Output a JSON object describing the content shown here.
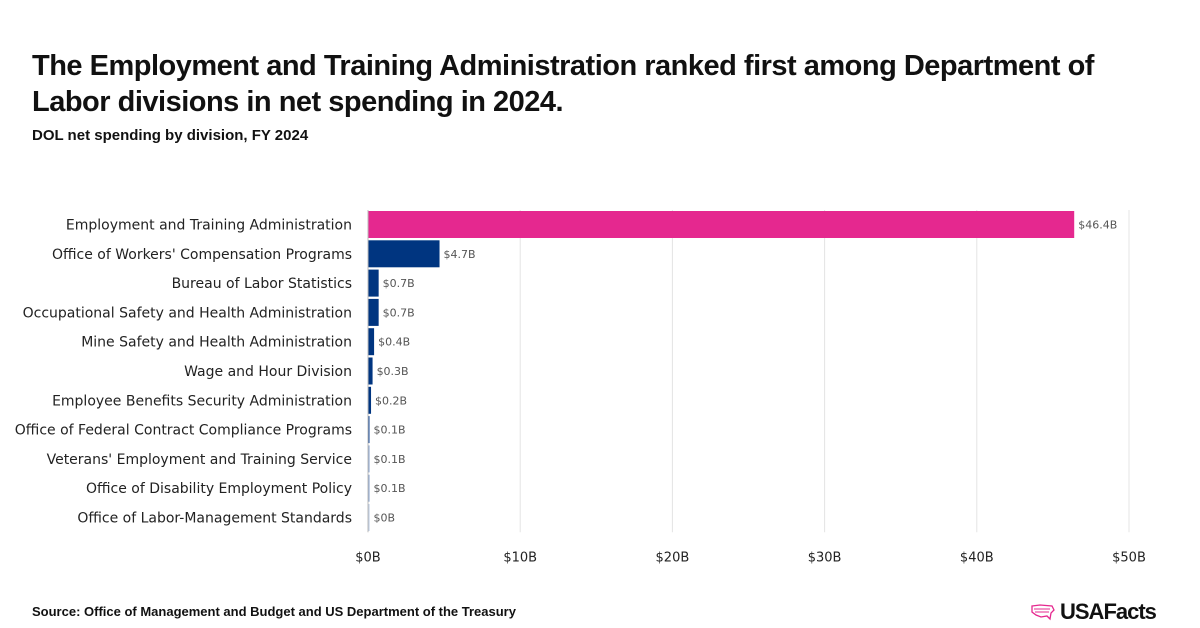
{
  "title": "The Employment and Training Administration ranked first among Department of Labor divisions in net spending in 2024.",
  "subtitle": "DOL net spending by division, FY 2024",
  "source": "Source: Office of Management and Budget and US Department of the Treasury",
  "logo": "USAFacts",
  "chart_data": {
    "type": "bar",
    "orientation": "horizontal",
    "title": "DOL net spending by division, FY 2024",
    "xlabel": "",
    "ylabel": "",
    "xlim": [
      0,
      50
    ],
    "x_ticks": [
      0,
      10,
      20,
      30,
      40,
      50
    ],
    "x_tick_labels": [
      "$0B",
      "$10B",
      "$20B",
      "$30B",
      "$40B",
      "$50B"
    ],
    "grid": true,
    "categories": [
      "Employment and Training Administration",
      "Office of Workers' Compensation Programs",
      "Bureau of Labor Statistics",
      "Occupational Safety and Health Administration",
      "Mine Safety and Health Administration",
      "Wage and Hour Division",
      "Employee Benefits Security Administration",
      "Office of Federal Contract Compliance Programs",
      "Veterans' Employment and Training Service",
      "Office of Disability Employment Policy",
      "Office of Labor-Management Standards"
    ],
    "values": [
      46.4,
      4.7,
      0.7,
      0.7,
      0.4,
      0.3,
      0.2,
      0.1,
      0.1,
      0.1,
      0.04
    ],
    "data_labels": [
      "$46.4B",
      "$4.7B",
      "$0.7B",
      "$0.7B",
      "$0.4B",
      "$0.3B",
      "$0.2B",
      "$0.1B",
      "$0.1B",
      "$0.1B",
      "$0B"
    ],
    "colors": [
      "#e5288f",
      "#003580",
      "#003580",
      "#003580",
      "#003580",
      "#003580",
      "#003580",
      "#1f4f9a",
      "#8aa3cc",
      "#8aa3cc",
      "#b8c8e0"
    ]
  }
}
